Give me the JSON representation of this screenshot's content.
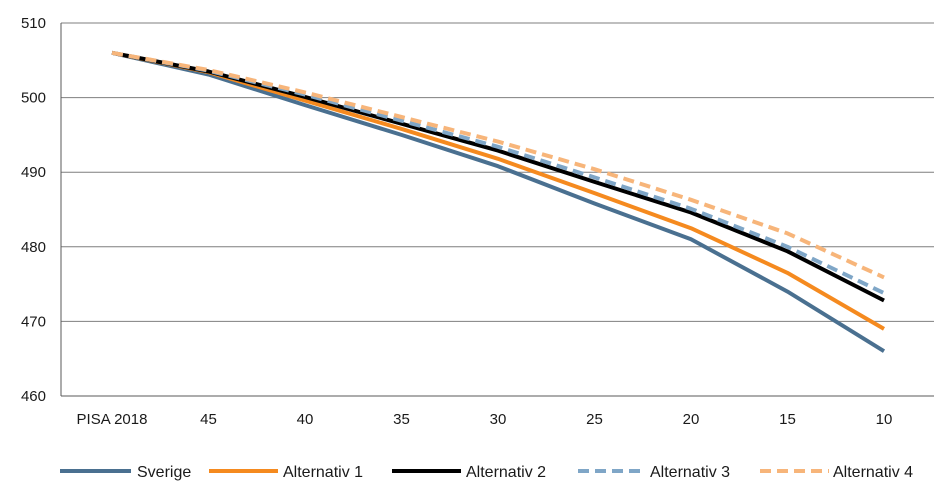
{
  "chart_data": {
    "type": "line",
    "categories": [
      "PISA 2018",
      "45",
      "40",
      "35",
      "30",
      "25",
      "20",
      "15",
      "10"
    ],
    "ylim": [
      460,
      510
    ],
    "yticks": [
      460,
      470,
      480,
      490,
      500,
      510
    ],
    "grid": true,
    "legend_position": "bottom",
    "series": [
      {
        "name": "Sverige",
        "color": "#4a7090",
        "dash": "solid",
        "values": [
          506,
          503.1,
          499,
          495,
          490.8,
          485.8,
          481,
          474,
          466
        ]
      },
      {
        "name": "Alternativ 1",
        "color": "#f58a1f",
        "dash": "solid",
        "values": [
          506,
          503.4,
          499.6,
          495.8,
          491.8,
          487.2,
          482.5,
          476.5,
          469
        ]
      },
      {
        "name": "Alternativ 2",
        "color": "#000000",
        "dash": "solid",
        "values": [
          506,
          503.5,
          500.1,
          496.5,
          492.9,
          488.7,
          484.6,
          479.4,
          472.8
        ]
      },
      {
        "name": "Alternativ 3",
        "color": "#7fa6c7",
        "dash": "dashed",
        "values": [
          506,
          503.6,
          500.4,
          496.9,
          493.4,
          489.3,
          485.1,
          480,
          473.8
        ]
      },
      {
        "name": "Alternativ 4",
        "color": "#f7b57a",
        "dash": "dashed",
        "values": [
          506,
          503.7,
          500.7,
          497.4,
          494.1,
          490.4,
          486.3,
          481.8,
          475.9
        ]
      }
    ]
  }
}
